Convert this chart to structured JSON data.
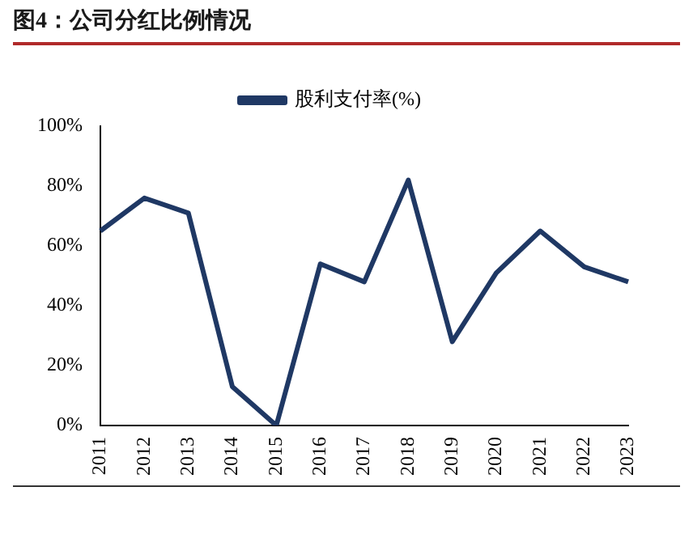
{
  "chart_data": {
    "type": "line",
    "title": "图4：公司分红比例情况",
    "categories": [
      "2011",
      "2012",
      "2013",
      "2014",
      "2015",
      "2016",
      "2017",
      "2018",
      "2019",
      "2020",
      "2021",
      "2022",
      "2023"
    ],
    "series": [
      {
        "name": "股利支付率(%)",
        "color": "#1f3864",
        "values": [
          65,
          76,
          71,
          13,
          0,
          54,
          48,
          82,
          28,
          51,
          65,
          53,
          48
        ]
      }
    ],
    "ylim": [
      0,
      100
    ],
    "yticks": [
      {
        "value": 0,
        "label": "0%"
      },
      {
        "value": 20,
        "label": "20%"
      },
      {
        "value": 40,
        "label": "40%"
      },
      {
        "value": 60,
        "label": "60%"
      },
      {
        "value": 80,
        "label": "80%"
      },
      {
        "value": 100,
        "label": "100%"
      }
    ],
    "grid": false,
    "legend": "top",
    "marker": "none",
    "line_style": "solid"
  }
}
